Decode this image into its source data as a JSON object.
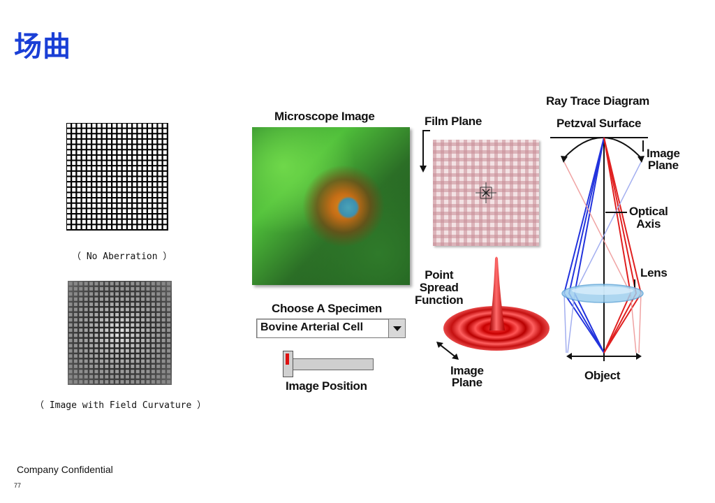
{
  "slide": {
    "title": "场曲",
    "footer": "Company Confidential",
    "page_number": "77"
  },
  "figures": {
    "no_aberration_caption": "（ No Aberration ）",
    "field_curvature_caption": "（ Image with Field Curvature ）"
  },
  "applet": {
    "microscope_image_label": "Microscope Image",
    "film_plane_label": "Film Plane",
    "ray_trace_label": "Ray Trace Diagram",
    "petzval_label": "Petzval Surface",
    "image_plane_label_top_line1": "Image",
    "image_plane_label_top_line2": "Plane",
    "optical_axis_line1": "Optical",
    "optical_axis_line2": "Axis",
    "lens_label": "Lens",
    "object_label": "Object",
    "psf_line1": "Point",
    "psf_line2": "Spread",
    "psf_line3": "Function",
    "image_plane_bottom_line1": "Image",
    "image_plane_bottom_line2": "Plane",
    "choose_specimen_label": "Choose A Specimen",
    "specimen_selected": "Bovine Arterial Cell",
    "image_position_label": "Image Position"
  },
  "colors": {
    "title": "#1a3fd6",
    "ray_blue": "#2233dd",
    "ray_red": "#e02020",
    "slider_marker": "#dd1111"
  }
}
